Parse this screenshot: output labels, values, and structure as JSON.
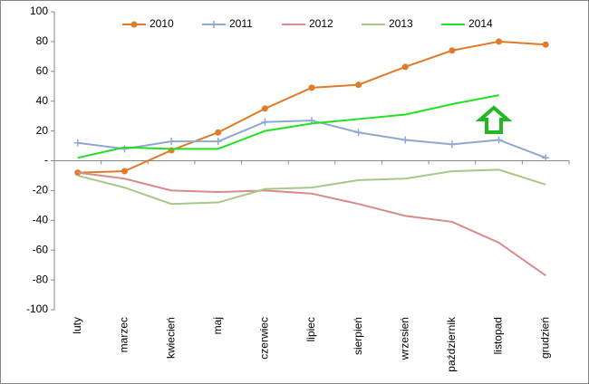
{
  "chart_data": {
    "type": "line",
    "categories": [
      "luty",
      "marzec",
      "kwiecień",
      "maj",
      "czerwiec",
      "lipiec",
      "sierpień",
      "wrzesień",
      "październik",
      "listopad",
      "grudzień"
    ],
    "series": [
      {
        "name": "2010",
        "color": "#e07b2a",
        "marker": "circle",
        "values": [
          -8,
          -7,
          7,
          19,
          35,
          49,
          51,
          63,
          74,
          80,
          78
        ]
      },
      {
        "name": "2011",
        "color": "#8ea9cf",
        "marker": "plus",
        "values": [
          12,
          8,
          13,
          13,
          26,
          27,
          19,
          14,
          11,
          14,
          2
        ]
      },
      {
        "name": "2012",
        "color": "#d98a8a",
        "values": [
          -8,
          -12,
          -20,
          -21,
          -20,
          -22,
          -29,
          -37,
          -41,
          -55,
          -77
        ]
      },
      {
        "name": "2013",
        "color": "#a8c888",
        "values": [
          -10,
          -18,
          -29,
          -28,
          -19,
          -18,
          -13,
          -12,
          -7,
          -6,
          -16
        ]
      },
      {
        "name": "2014",
        "color": "#22e022",
        "values": [
          2,
          9,
          8,
          8,
          20,
          25,
          28,
          31,
          38,
          44,
          null
        ]
      }
    ],
    "ylim": [
      -100,
      100
    ],
    "yticks": [
      -100,
      -80,
      -60,
      -40,
      -20,
      {
        "value": 0,
        "label": "-"
      },
      20,
      40,
      60,
      80,
      100
    ],
    "legend": "top"
  }
}
